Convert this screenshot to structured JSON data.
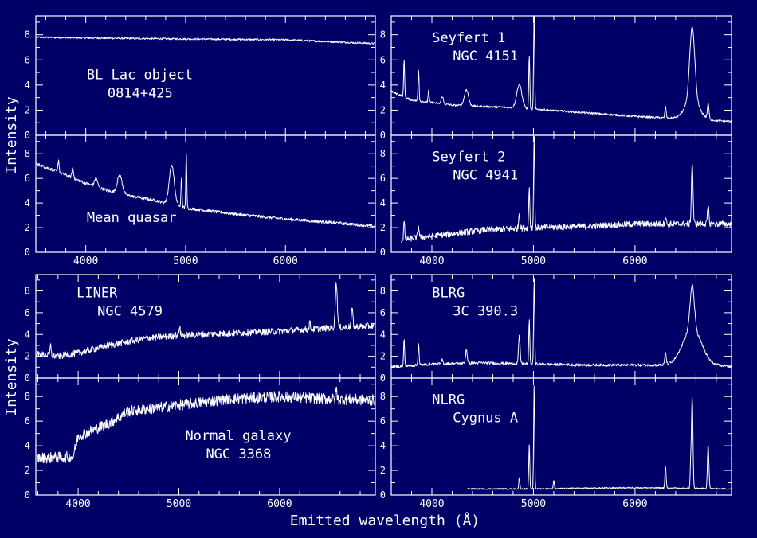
{
  "figure": {
    "ylabel": "Intensity",
    "xlabel": "Emitted wavelength (Å)",
    "colors": {
      "background": "#000066",
      "foreground": "#ffffff"
    }
  },
  "chart_data": [
    {
      "type": "line",
      "label": [
        "BL Lac object",
        "0814+425"
      ],
      "label_position": "middle-left",
      "xlim": [
        3500,
        6900
      ],
      "ylim": [
        0,
        9.5
      ],
      "yticks": [
        0,
        2,
        4,
        6,
        8
      ],
      "xticks": [
        4000,
        5000,
        6000
      ],
      "show_xticklabels": false,
      "continuum": [
        [
          3500,
          7.8
        ],
        [
          4500,
          7.7
        ],
        [
          6000,
          7.6
        ],
        [
          6900,
          7.3
        ]
      ],
      "lines": [],
      "noise": 0.07
    },
    {
      "type": "line",
      "label": [
        "Mean quasar"
      ],
      "label_position": "bottom-left",
      "xlim": [
        3500,
        6900
      ],
      "ylim": [
        0,
        9.5
      ],
      "yticks": [
        0,
        2,
        4,
        6,
        8
      ],
      "xticks": [
        4000,
        5000,
        6000
      ],
      "show_xticklabels": true,
      "continuum": [
        [
          3500,
          7.2
        ],
        [
          3700,
          6.6
        ],
        [
          4000,
          5.6
        ],
        [
          4300,
          4.8
        ],
        [
          4700,
          4.2
        ],
        [
          5000,
          3.6
        ],
        [
          5500,
          3.1
        ],
        [
          6000,
          2.7
        ],
        [
          6500,
          2.4
        ],
        [
          6900,
          2.1
        ]
      ],
      "lines": [
        [
          3727,
          1.0,
          6
        ],
        [
          3869,
          0.8,
          8
        ],
        [
          4102,
          0.7,
          15
        ],
        [
          4340,
          1.5,
          25
        ],
        [
          4861,
          3.2,
          25
        ],
        [
          4959,
          2.4,
          5
        ],
        [
          5007,
          4.4,
          5
        ]
      ],
      "noise": 0.12
    },
    {
      "type": "line",
      "label": [
        "Seyfert 1",
        "NGC 4151"
      ],
      "label_position": "top-left",
      "xlim": [
        3600,
        6950
      ],
      "ylim": [
        0,
        9.5
      ],
      "yticks": [
        0,
        2,
        4,
        6,
        8
      ],
      "xticks": [
        4000,
        5000,
        6000
      ],
      "show_xticklabels": false,
      "continuum": [
        [
          3600,
          3.5
        ],
        [
          3800,
          2.8
        ],
        [
          4200,
          2.4
        ],
        [
          4800,
          2.2
        ],
        [
          5500,
          1.8
        ],
        [
          6000,
          1.5
        ],
        [
          6500,
          1.3
        ],
        [
          6950,
          1.1
        ]
      ],
      "lines": [
        [
          3727,
          3.0,
          5
        ],
        [
          3869,
          2.5,
          5
        ],
        [
          3968,
          1.0,
          5
        ],
        [
          4102,
          0.6,
          10
        ],
        [
          4340,
          1.3,
          20
        ],
        [
          4861,
          1.9,
          25
        ],
        [
          4959,
          4.3,
          5
        ],
        [
          5007,
          8.0,
          5
        ],
        [
          6300,
          0.9,
          6
        ],
        [
          6563,
          5.8,
          25
        ],
        [
          6563,
          1.5,
          70
        ],
        [
          6720,
          1.2,
          8
        ]
      ],
      "noise": 0.08
    },
    {
      "type": "line",
      "label": [
        "Seyfert 2",
        "NGC 4941"
      ],
      "label_position": "top-left",
      "xlim": [
        3600,
        6950
      ],
      "ylim": [
        0,
        9.5
      ],
      "yticks": [
        0,
        2,
        4,
        6,
        8
      ],
      "xticks": [
        4000,
        5000,
        6000
      ],
      "show_xticklabels": true,
      "continuum": [
        [
          3700,
          1.0
        ],
        [
          3850,
          1.2
        ],
        [
          4000,
          1.3
        ],
        [
          4500,
          1.8
        ],
        [
          5000,
          2.0
        ],
        [
          5500,
          2.1
        ],
        [
          6000,
          2.3
        ],
        [
          6500,
          2.3
        ],
        [
          6950,
          2.3
        ]
      ],
      "lines": [
        [
          3727,
          1.7,
          5
        ],
        [
          3869,
          0.9,
          6
        ],
        [
          4861,
          1.3,
          6
        ],
        [
          4959,
          3.3,
          5
        ],
        [
          5007,
          7.8,
          5
        ],
        [
          6300,
          0.6,
          6
        ],
        [
          6563,
          5.0,
          8
        ],
        [
          6720,
          1.4,
          7
        ]
      ],
      "noise": 0.25
    },
    {
      "type": "line",
      "label": [
        "LINER",
        "NGC 4579"
      ],
      "label_position": "top-left",
      "xlim": [
        3580,
        6950
      ],
      "ylim": [
        0,
        9.5
      ],
      "yticks": [
        0,
        2,
        4,
        6,
        8
      ],
      "xticks": [
        4000,
        5000,
        6000
      ],
      "show_xticklabels": false,
      "continuum": [
        [
          3580,
          2.2
        ],
        [
          3800,
          2.0
        ],
        [
          4000,
          2.3
        ],
        [
          4300,
          3.0
        ],
        [
          4700,
          3.7
        ],
        [
          5000,
          3.9
        ],
        [
          5500,
          4.1
        ],
        [
          6000,
          4.3
        ],
        [
          6500,
          4.6
        ],
        [
          6950,
          4.8
        ]
      ],
      "lines": [
        [
          3727,
          0.9,
          6
        ],
        [
          4959,
          0.3,
          5
        ],
        [
          5007,
          0.9,
          6
        ],
        [
          6300,
          0.6,
          6
        ],
        [
          6563,
          4.1,
          10
        ],
        [
          6720,
          1.6,
          8
        ]
      ],
      "noise": 0.3
    },
    {
      "type": "line",
      "label": [
        "Normal galaxy",
        "NGC 3368"
      ],
      "label_position": "middle",
      "xlim": [
        3580,
        6950
      ],
      "ylim": [
        0,
        9.5
      ],
      "yticks": [
        0,
        2,
        4,
        6,
        8
      ],
      "xticks": [
        4000,
        5000,
        6000
      ],
      "show_xticklabels": true,
      "continuum": [
        [
          3600,
          3.0
        ],
        [
          3950,
          3.1
        ],
        [
          4000,
          4.8
        ],
        [
          4300,
          5.8
        ],
        [
          4500,
          6.8
        ],
        [
          5000,
          7.3
        ],
        [
          5500,
          7.8
        ],
        [
          6000,
          8.0
        ],
        [
          6500,
          7.8
        ],
        [
          6950,
          7.7
        ]
      ],
      "lines": [
        [
          6563,
          0.8,
          6
        ]
      ],
      "noise": 0.45
    },
    {
      "type": "line",
      "label": [
        "BLRG",
        "3C 390.3"
      ],
      "label_position": "top-left",
      "xlim": [
        3600,
        6950
      ],
      "ylim": [
        0,
        9.5
      ],
      "yticks": [
        0,
        2,
        4,
        6,
        8
      ],
      "xticks": [
        4000,
        5000,
        6000
      ],
      "show_xticklabels": false,
      "continuum": [
        [
          3600,
          1.0
        ],
        [
          4000,
          1.3
        ],
        [
          4500,
          1.4
        ],
        [
          5000,
          1.3
        ],
        [
          5500,
          1.2
        ],
        [
          6000,
          1.2
        ],
        [
          6500,
          1.2
        ],
        [
          6950,
          1.1
        ]
      ],
      "lines": [
        [
          3727,
          2.5,
          5
        ],
        [
          3869,
          2.0,
          5
        ],
        [
          4102,
          0.4,
          6
        ],
        [
          4340,
          1.3,
          8
        ],
        [
          4861,
          2.5,
          8
        ],
        [
          4959,
          4.0,
          5
        ],
        [
          5007,
          8.0,
          5
        ],
        [
          6300,
          1.1,
          7
        ],
        [
          6563,
          3.4,
          90
        ],
        [
          6563,
          4.0,
          20
        ]
      ],
      "noise": 0.12
    },
    {
      "type": "line",
      "label": [
        "NLRG",
        "Cygnus A"
      ],
      "label_position": "top-left",
      "xlim": [
        3600,
        6950
      ],
      "ylim": [
        0,
        9.5
      ],
      "yticks": [
        0,
        2,
        4,
        6,
        8
      ],
      "xticks": [
        4000,
        5000,
        6000
      ],
      "show_xticklabels": true,
      "continuum": [
        [
          4350,
          0.5
        ],
        [
          5000,
          0.5
        ],
        [
          6000,
          0.6
        ],
        [
          6950,
          0.5
        ]
      ],
      "lines": [
        [
          4861,
          0.9,
          5
        ],
        [
          4959,
          3.6,
          5
        ],
        [
          5007,
          8.5,
          5
        ],
        [
          5200,
          0.7,
          5
        ],
        [
          6300,
          1.8,
          6
        ],
        [
          6548,
          2.0,
          5
        ],
        [
          6563,
          7.5,
          7
        ],
        [
          6720,
          3.6,
          7
        ]
      ],
      "noise": 0.05
    }
  ]
}
